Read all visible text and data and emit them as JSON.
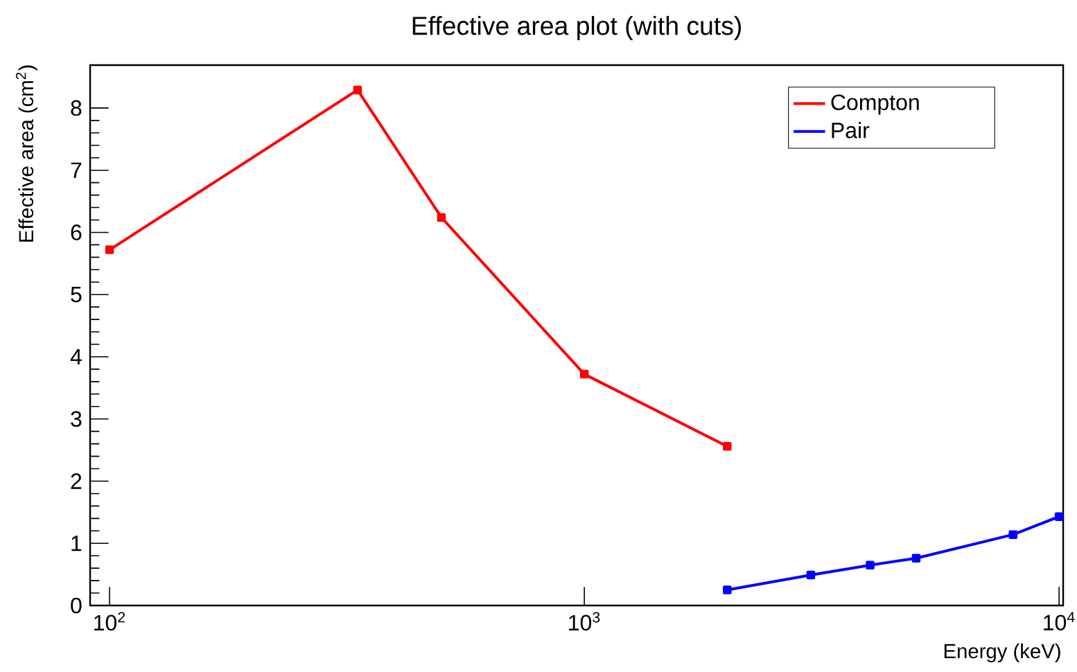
{
  "chart_data": {
    "type": "line",
    "title": "Effective area plot (with cuts)",
    "xlabel": "Energy (keV)",
    "ylabel": "Effective area (cm$^{2}$)",
    "log": "x",
    "xlim": [
      91,
      10200
    ],
    "ylim": [
      0,
      8.69
    ],
    "xticks": [
      {
        "value": 100,
        "label": "10$^{2}$"
      },
      {
        "value": 1000,
        "label": "10$^{3}$"
      },
      {
        "value": 10000,
        "label": "10$^{4}$"
      }
    ],
    "yticks": [
      0,
      1,
      2,
      3,
      4,
      5,
      6,
      7,
      8
    ],
    "legend": "top right",
    "marker": "square",
    "line_style": "solid",
    "series": [
      {
        "name": "Compton",
        "color": "#ff0000",
        "x": [
          100,
          333,
          500,
          1000,
          2000
        ],
        "values": [
          5.72,
          8.29,
          6.24,
          3.72,
          2.56
        ]
      },
      {
        "name": "Pair",
        "color": "#0000ff",
        "x": [
          2000,
          3000,
          4000,
          5000,
          8000,
          10000
        ],
        "values": [
          0.25,
          0.49,
          0.65,
          0.76,
          1.14,
          1.43
        ]
      }
    ]
  }
}
